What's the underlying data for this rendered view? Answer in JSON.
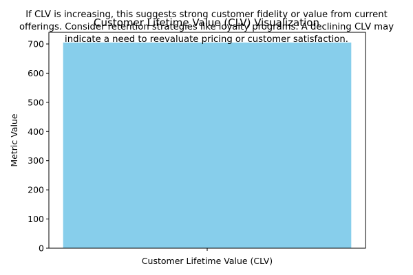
{
  "chart_data": {
    "type": "bar",
    "title": "Customer Lifetime Value (CLV) Visualization",
    "annotation_lines": [
      "If CLV is increasing, this suggests strong customer fidelity or value from current",
      "offerings. Consider retention strategies like loyalty programs. A declining CLV may",
      "indicate a need to reevaluate pricing or customer satisfaction."
    ],
    "categories": [
      "Customer Lifetime Value (CLV)"
    ],
    "values": [
      705
    ],
    "xlabel": "Customer Lifetime Value (CLV)",
    "ylabel": "Metric Value",
    "ylim": [
      0,
      740
    ],
    "yticks": [
      0,
      100,
      200,
      300,
      400,
      500,
      600,
      700
    ],
    "grid": false,
    "bar_color": "#87CEEB"
  }
}
